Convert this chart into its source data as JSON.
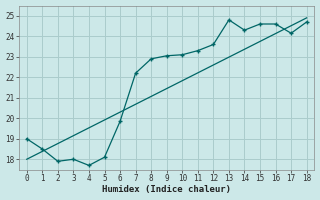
{
  "xlabel": "Humidex (Indice chaleur)",
  "xlim": [
    -0.5,
    18.5
  ],
  "ylim": [
    17.5,
    25.5
  ],
  "yticks": [
    18,
    19,
    20,
    21,
    22,
    23,
    24,
    25
  ],
  "xticks": [
    0,
    1,
    2,
    3,
    4,
    5,
    6,
    7,
    8,
    9,
    10,
    11,
    12,
    13,
    14,
    15,
    16,
    17,
    18
  ],
  "bg_color": "#cce8e8",
  "grid_color": "#aacccc",
  "line_color": "#006666",
  "curve_x": [
    0,
    1,
    2,
    3,
    4,
    5,
    6,
    7,
    8,
    9,
    10,
    11,
    12,
    13,
    14,
    15,
    16,
    17,
    18
  ],
  "curve_y": [
    19.0,
    18.5,
    17.9,
    18.0,
    17.7,
    18.1,
    19.85,
    22.2,
    22.9,
    23.05,
    23.1,
    23.3,
    23.6,
    24.8,
    24.3,
    24.6,
    24.6,
    24.15,
    24.7
  ],
  "line_x": [
    0,
    18
  ],
  "line_y": [
    18.0,
    24.9
  ]
}
